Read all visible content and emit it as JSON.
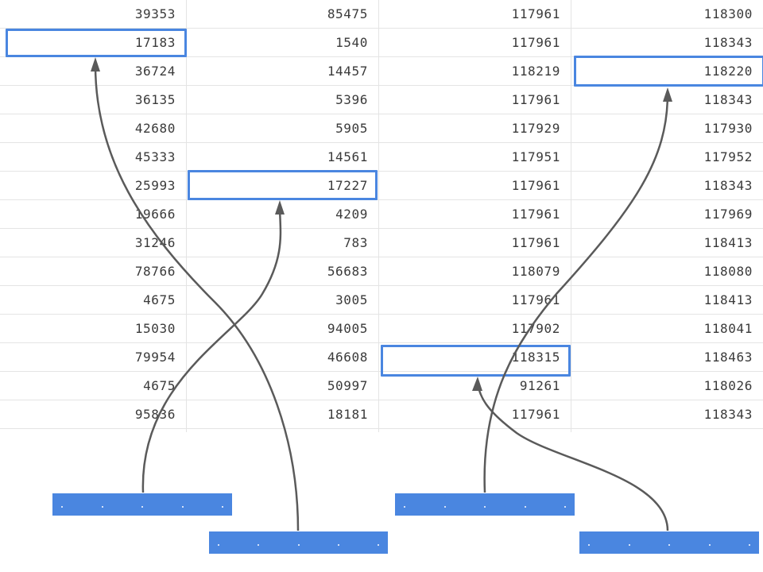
{
  "grid": {
    "rows": [
      [
        "39353",
        "85475",
        "117961",
        "118300"
      ],
      [
        "17183",
        "1540",
        "117961",
        "118343"
      ],
      [
        "36724",
        "14457",
        "118219",
        "118220"
      ],
      [
        "36135",
        "5396",
        "117961",
        "118343"
      ],
      [
        "42680",
        "5905",
        "117929",
        "117930"
      ],
      [
        "45333",
        "14561",
        "117951",
        "117952"
      ],
      [
        "25993",
        "17227",
        "117961",
        "118343"
      ],
      [
        "19666",
        "4209",
        "117961",
        "117969"
      ],
      [
        "31246",
        "783",
        "117961",
        "118413"
      ],
      [
        "78766",
        "56683",
        "118079",
        "118080"
      ],
      [
        "4675",
        "3005",
        "117961",
        "118413"
      ],
      [
        "15030",
        "94005",
        "117902",
        "118041"
      ],
      [
        "79954",
        "46608",
        "118315",
        "118463"
      ],
      [
        "4675",
        "50997",
        "91261",
        "118026"
      ],
      [
        "95836",
        "18181",
        "117961",
        "118343"
      ]
    ],
    "highlighted_cells": [
      {
        "row": 1,
        "col": 0
      },
      {
        "row": 6,
        "col": 1
      },
      {
        "row": 2,
        "col": 3
      },
      {
        "row": 12,
        "col": 2
      }
    ]
  },
  "chips": [
    {
      "id": "chip-1",
      "dots": 5
    },
    {
      "id": "chip-2",
      "dots": 5
    },
    {
      "id": "chip-3",
      "dots": 5
    },
    {
      "id": "chip-4",
      "dots": 5
    }
  ],
  "colors": {
    "accent": "#4a86e0",
    "arrow": "#5a5a5a",
    "grid_line": "#e4e4e4",
    "text": "#3a3a3a"
  },
  "icons": {
    "arrow_head": "arrow-head-icon"
  }
}
